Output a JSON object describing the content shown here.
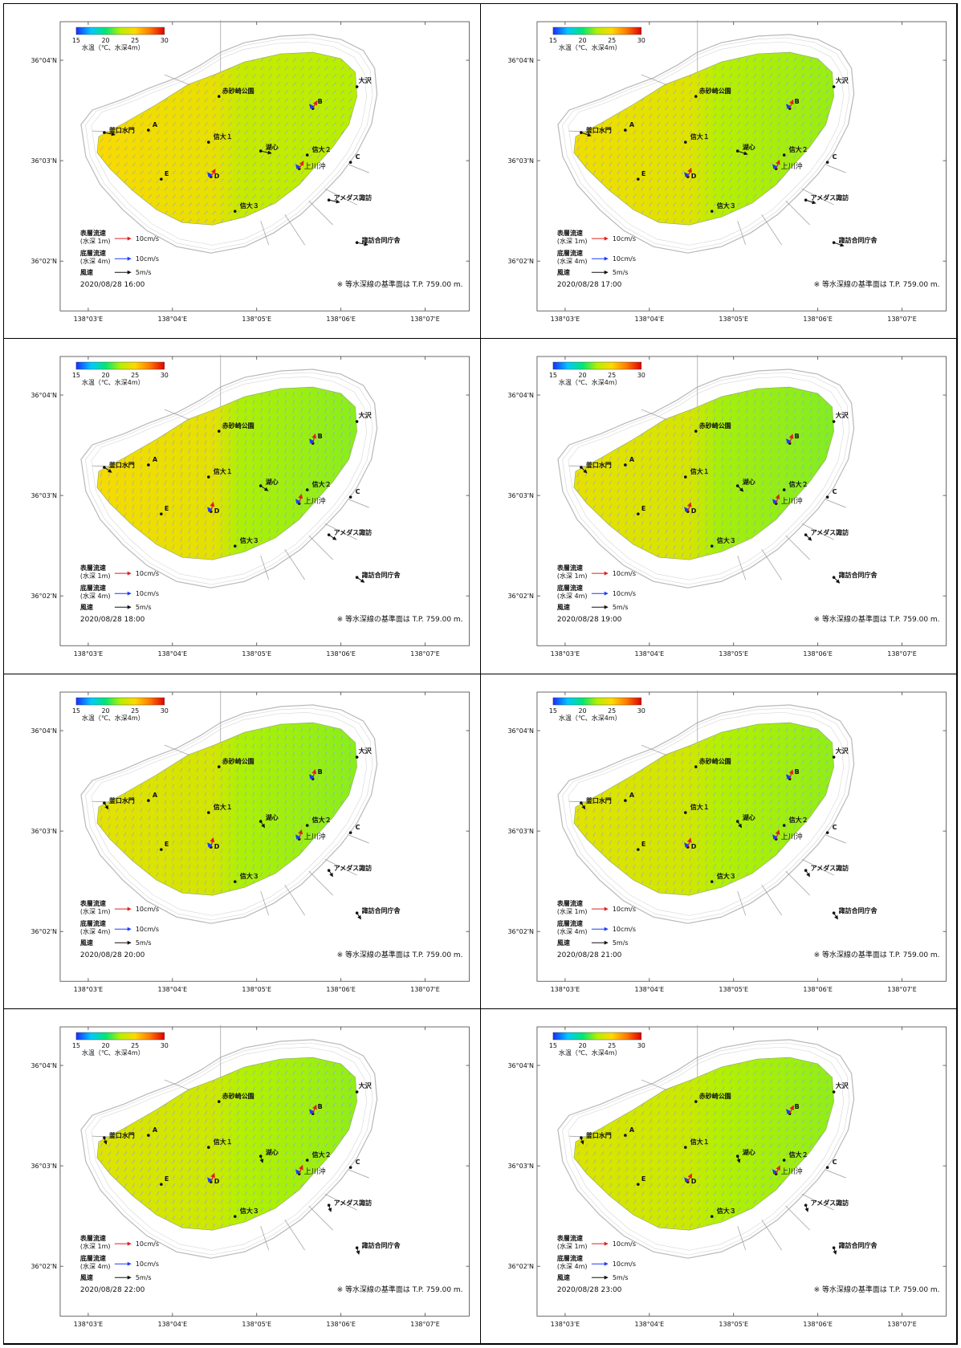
{
  "colorbar": {
    "min": 15,
    "max": 30,
    "ticks": [
      "15",
      "20",
      "25",
      "30"
    ],
    "label": "水温（℃、水深4m）",
    "colors": [
      "#1a2cff",
      "#00c8ff",
      "#00e676",
      "#b4f000",
      "#ffd800",
      "#ff7a00",
      "#e00000"
    ]
  },
  "axes": {
    "lon_ticks": [
      "138°03'E",
      "138°04'E",
      "138°05'E",
      "138°06'E",
      "138°07'E"
    ],
    "lat_ticks": [
      "36°04'N",
      "36°03'N",
      "36°02'N"
    ]
  },
  "places": {
    "akasunazaki": "赤砂崎公園",
    "osawa": "大沢",
    "A": "A",
    "B": "B",
    "C": "C",
    "D": "D",
    "E": "E",
    "kamagu": "釜口水門",
    "shindai1": "信大１",
    "koshin": "湖心",
    "shindai2": "信大２",
    "kamikawa": "上川沖",
    "shindai3": "信大３",
    "amedas": "アメダス諏訪",
    "suwa_office": "諏訪合同庁舎"
  },
  "legend": {
    "surface_label": "表層流速",
    "surface_depth": "(水深 1m)",
    "surface_scale": "10cm/s",
    "bottom_label": "底層流速",
    "bottom_depth": "(水深 4m)",
    "bottom_scale": "10cm/s",
    "wind_label": "風速",
    "wind_scale": "5m/s"
  },
  "note": "※ 等水深線の基準面は T.P. 759.00 m.",
  "colors": {
    "surface_arrow": "#e02020",
    "bottom_arrow": "#1e3cff",
    "wind_arrow": "#111111",
    "vector_field": "#9aa0e8",
    "contour": "#b8b8b8",
    "frame": "#000000"
  },
  "panels": [
    {
      "timestamp": "2020/08/28  16:00",
      "temp_west": 24.2,
      "temp_east": 22.6,
      "vec_dir": 40,
      "wind_dir": 200
    },
    {
      "timestamp": "2020/08/28  17:00",
      "temp_west": 23.9,
      "temp_east": 22.1,
      "vec_dir": 30,
      "wind_dir": 210
    },
    {
      "timestamp": "2020/08/28  18:00",
      "temp_west": 24.1,
      "temp_east": 21.9,
      "vec_dir": 20,
      "wind_dir": 230
    },
    {
      "timestamp": "2020/08/28  19:00",
      "temp_west": 23.6,
      "temp_east": 21.8,
      "vec_dir": 25,
      "wind_dir": 240
    },
    {
      "timestamp": "2020/08/28  20:00",
      "temp_west": 23.5,
      "temp_east": 21.9,
      "vec_dir": 20,
      "wind_dir": 250
    },
    {
      "timestamp": "2020/08/28  21:00",
      "temp_west": 23.4,
      "temp_east": 22.0,
      "vec_dir": 25,
      "wind_dir": 250
    },
    {
      "timestamp": "2020/08/28  22:00",
      "temp_west": 23.3,
      "temp_east": 22.0,
      "vec_dir": 30,
      "wind_dir": 260
    },
    {
      "timestamp": "2020/08/28  23:00",
      "temp_west": 23.2,
      "temp_east": 22.0,
      "vec_dir": 35,
      "wind_dir": 260
    }
  ]
}
